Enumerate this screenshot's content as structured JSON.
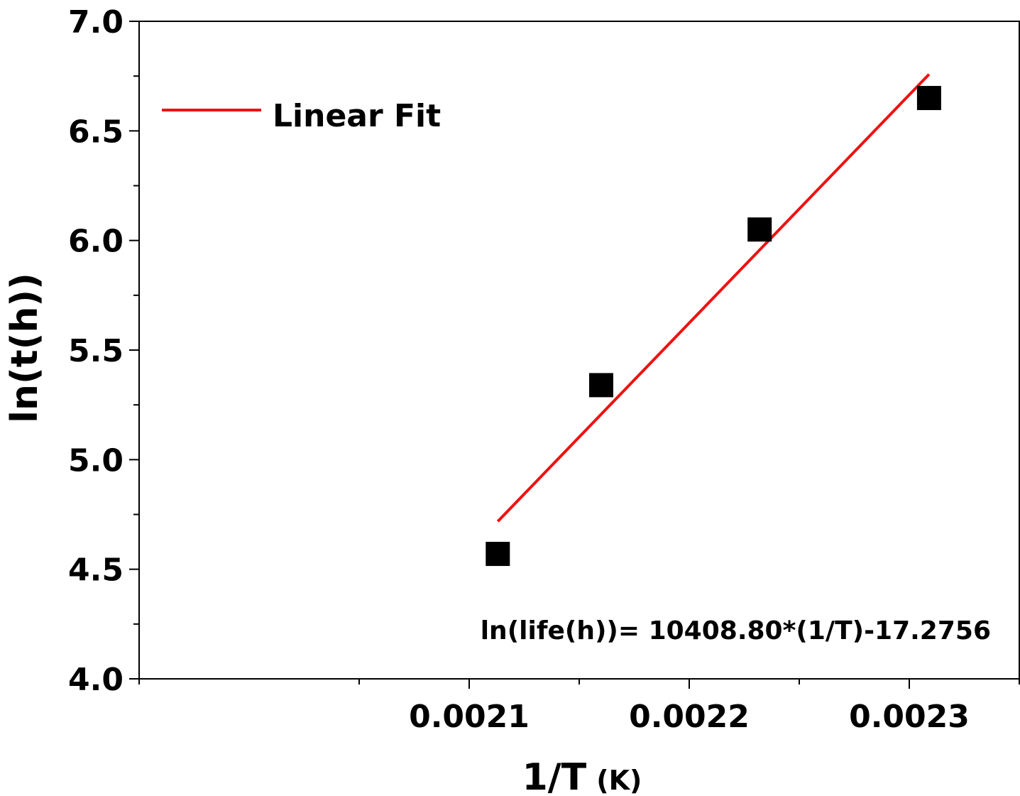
{
  "chart_data": {
    "type": "scatter",
    "xlabel": "1/T",
    "xlabel_unit": "(K)",
    "ylabel": "ln(t(h))",
    "xlim": [
      0.00195,
      0.00235
    ],
    "ylim": [
      4.0,
      7.0
    ],
    "x_ticks": [
      {
        "value": 0.0021,
        "label": "0.0021"
      },
      {
        "value": 0.0022,
        "label": "0.0022"
      },
      {
        "value": 0.0023,
        "label": "0.0023"
      }
    ],
    "x_minor_ticks": [
      0.00195,
      0.00205,
      0.00215,
      0.00225,
      0.00235
    ],
    "y_ticks": [
      {
        "value": 4.0,
        "label": "4.0"
      },
      {
        "value": 4.5,
        "label": "4.5"
      },
      {
        "value": 5.0,
        "label": "5.0"
      },
      {
        "value": 5.5,
        "label": "5.5"
      },
      {
        "value": 6.0,
        "label": "6.0"
      },
      {
        "value": 6.5,
        "label": "6.5"
      },
      {
        "value": 7.0,
        "label": "7.0"
      }
    ],
    "y_minor_step": 0.25,
    "points": [
      {
        "x": 0.002113,
        "y": 4.57
      },
      {
        "x": 0.00216,
        "y": 5.34
      },
      {
        "x": 0.002232,
        "y": 6.05
      },
      {
        "x": 0.002309,
        "y": 6.65
      }
    ],
    "fit": {
      "name": "Linear Fit",
      "slope": 10408.8,
      "intercept": -17.2756,
      "x_range": [
        0.002113,
        0.002309
      ],
      "equation": "ln(life(h))= 10408.80*(1/T)-17.2756"
    },
    "grid": false,
    "legend_position": "top-left",
    "equation_position": "bottom-right"
  },
  "colors": {
    "fit_line": "#ee1111",
    "points": "#000000",
    "axes": "#000000"
  }
}
